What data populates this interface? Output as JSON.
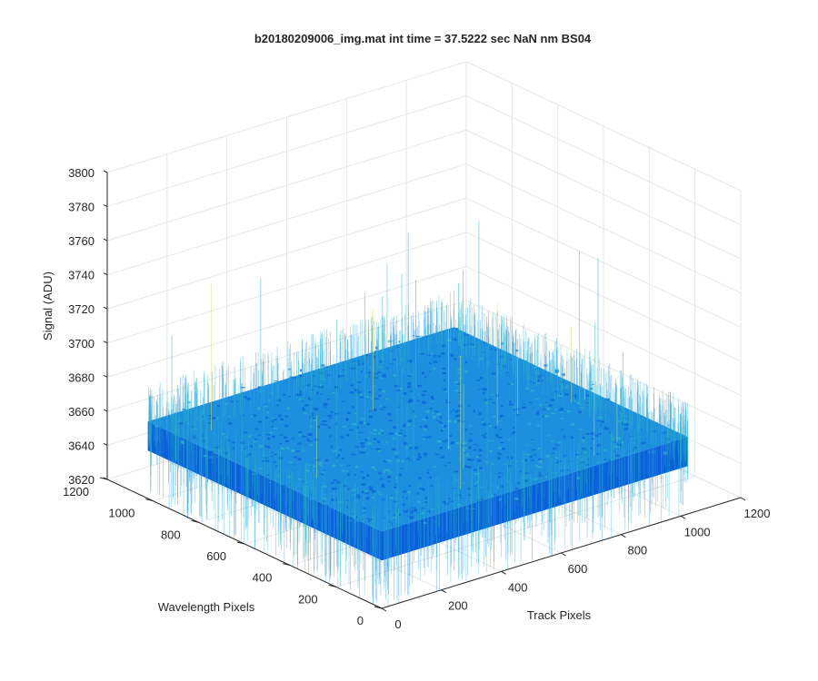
{
  "window": {
    "background": "#ffffff"
  },
  "chart_data": {
    "type": "surface",
    "title": "b20180209006_img.mat int time = 37.5222 sec  NaN nm BS04",
    "xlabel": "Track Pixels",
    "ylabel": "Wavelength Pixels",
    "zlabel": "Signal (ADU)",
    "xlim": [
      0,
      1200
    ],
    "ylim": [
      0,
      1200
    ],
    "zlim": [
      3620,
      3800
    ],
    "x_ticks": [
      "0",
      "200",
      "400",
      "600",
      "800",
      "1000",
      "1200"
    ],
    "y_ticks": [
      "0",
      "200",
      "400",
      "600",
      "800",
      "1000",
      "1200"
    ],
    "z_ticks": [
      "3620",
      "3640",
      "3660",
      "3680",
      "3700",
      "3720",
      "3740",
      "3760",
      "3780",
      "3800"
    ],
    "surface": {
      "x_range": [
        1,
        1024
      ],
      "y_range": [
        1,
        1024
      ],
      "mean_signal": 3665,
      "min_signal": 3620,
      "max_signal": 3760
    },
    "grid": true,
    "colormap": "parula",
    "colors": {
      "low": "#0a60d8",
      "mid": "#1e8ede",
      "high": "#2cb6c8",
      "peak": "#c8e878"
    }
  }
}
